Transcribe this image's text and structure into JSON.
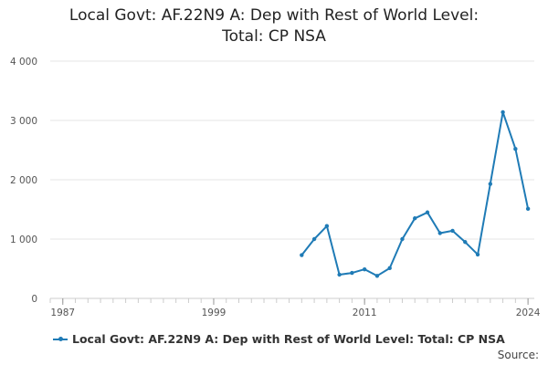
{
  "title": {
    "line1": "Local Govt: AF.22N9 A: Dep with Rest of World Level:",
    "line2": "Total: CP NSA"
  },
  "legend": {
    "label": "Local Govt: AF.22N9 A: Dep with Rest of World Level: Total: CP NSA"
  },
  "source_label": "Source:",
  "colors": {
    "series": "#1f7bb6",
    "grid": "#e6e6e6",
    "axis": "#cccccc",
    "tick_text": "#555555"
  },
  "chart_data": {
    "type": "line",
    "title": "Local Govt: AF.22N9 A: Dep with Rest of World Level: Total: CP NSA",
    "xlabel": "",
    "ylabel": "",
    "xlim": [
      1986,
      2024.5
    ],
    "ylim": [
      0,
      4000
    ],
    "x_ticks": [
      1987,
      1999,
      2011,
      2024
    ],
    "x_tick_labels": [
      "1987",
      "1999",
      "2011",
      "2024"
    ],
    "y_ticks": [
      0,
      1000,
      2000,
      3000,
      4000
    ],
    "y_tick_labels": [
      "0",
      "1 000",
      "2 000",
      "3 000",
      "4 000"
    ],
    "grid": "horizontal",
    "legend_position": "bottom",
    "series": [
      {
        "name": "Local Govt: AF.22N9 A: Dep with Rest of World Level: Total: CP NSA",
        "x": [
          2006,
          2007,
          2008,
          2009,
          2010,
          2011,
          2012,
          2013,
          2014,
          2015,
          2016,
          2017,
          2018,
          2019,
          2020,
          2021,
          2022,
          2023,
          2024
        ],
        "values": [
          730,
          1000,
          1220,
          400,
          430,
          490,
          380,
          510,
          1000,
          1350,
          1450,
          1100,
          1140,
          950,
          740,
          1930,
          3140,
          2520,
          1510
        ]
      }
    ]
  }
}
